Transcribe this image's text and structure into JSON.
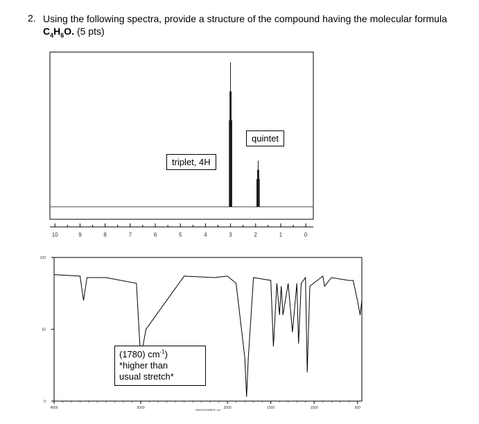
{
  "question": {
    "number": "2.",
    "text": "Using the following spectra, provide a structure of the compound having the molecular formula",
    "formula": {
      "c": "C",
      "c_sub": "4",
      "h": "H",
      "h_sub": "6",
      "o": "O."
    },
    "points": "(5 pts)"
  },
  "nmr": {
    "axis_ticks": [
      "10",
      "9",
      "8",
      "7",
      "6",
      "5",
      "4",
      "3",
      "2",
      "1",
      "0"
    ],
    "label_triplet": "triplet, 4H",
    "label_quintet": "quintet"
  },
  "ir": {
    "y_ticks": [
      "100",
      "50",
      "0"
    ],
    "x_ticks": [
      "4000",
      "3000",
      "2000",
      "1500",
      "1000",
      "500"
    ],
    "x_label": "WAVENUMBER–cm",
    "note": {
      "line1_prefix": "(1780) cm",
      "line1_sup": "-1",
      "line1_suffix": ")",
      "line2": "*higher than",
      "line3": "usual stretch*"
    }
  },
  "chart_data": [
    {
      "type": "line",
      "title": "",
      "xlabel": "",
      "ylabel": "",
      "x_axis": "chemical shift (ppm), decreasing left to right",
      "xlim": [
        10,
        0
      ],
      "peaks": [
        {
          "shift": 3.0,
          "relative_height": 1.0,
          "multiplicity": "triplet, 4H"
        },
        {
          "shift": 1.9,
          "relative_height": 0.32,
          "multiplicity": "quintet"
        }
      ]
    },
    {
      "type": "line",
      "title": "",
      "xlabel": "WAVENUMBER–cm",
      "ylabel": "",
      "xlim": [
        4000,
        450
      ],
      "ylim": [
        0,
        100
      ],
      "x": [
        4000,
        3700,
        3660,
        3620,
        3400,
        3050,
        3000,
        2970,
        2940,
        2500,
        2150,
        2000,
        1900,
        1800,
        1780,
        1760,
        1700,
        1500,
        1470,
        1430,
        1400,
        1380,
        1360,
        1300,
        1250,
        1200,
        1180,
        1150,
        1100,
        1080,
        1050,
        900,
        880,
        800,
        600,
        550,
        500,
        470,
        450
      ],
      "y": [
        88,
        87,
        70,
        86,
        86,
        82,
        28,
        40,
        50,
        87,
        86,
        87,
        82,
        30,
        3,
        30,
        86,
        84,
        38,
        82,
        60,
        80,
        60,
        82,
        48,
        82,
        40,
        82,
        86,
        20,
        80,
        87,
        80,
        86,
        84,
        84,
        70,
        60,
        70
      ]
    }
  ]
}
